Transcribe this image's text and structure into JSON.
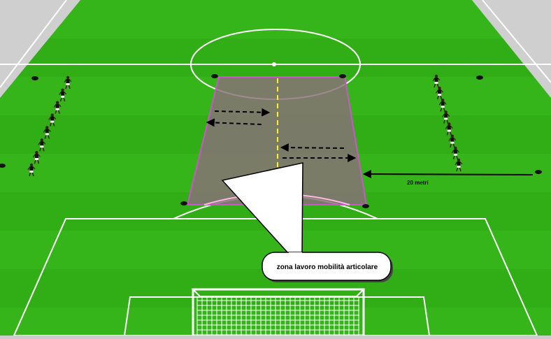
{
  "drill": {
    "callout_text": "zona lavoro mobilità articolare",
    "distance_label": "20 metri"
  },
  "colors": {
    "grass_light": "#36b51a",
    "grass_dark": "#2ca412",
    "zone_fill": "#8a6f7a",
    "zone_border": "#cc55cc",
    "midline": "#ffee33",
    "lines": "#ffffff",
    "outside": "#cfcfcf"
  },
  "players": {
    "left_group_count": 8,
    "right_group_count": 8
  }
}
